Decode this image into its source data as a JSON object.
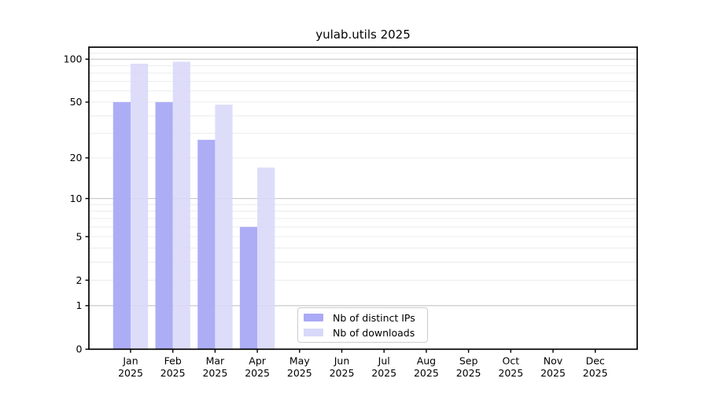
{
  "chart_data": {
    "type": "bar",
    "title": "yulab.utils 2025",
    "x_tick_months": [
      "Jan",
      "Feb",
      "Mar",
      "Apr",
      "May",
      "Jun",
      "Jul",
      "Aug",
      "Sep",
      "Oct",
      "Nov",
      "Dec"
    ],
    "x_tick_year": "2025",
    "categories": [
      "Jan 2025",
      "Feb 2025",
      "Mar 2025",
      "Apr 2025",
      "May 2025",
      "Jun 2025",
      "Jul 2025",
      "Aug 2025",
      "Sep 2025",
      "Oct 2025",
      "Nov 2025",
      "Dec 2025"
    ],
    "series": [
      {
        "name": "Nb of distinct IPs",
        "color": "#aaaaf6",
        "values": [
          50,
          50,
          27,
          6,
          null,
          null,
          null,
          null,
          null,
          null,
          null,
          null
        ]
      },
      {
        "name": "Nb of downloads",
        "color": "#d8d8f9",
        "values": [
          93,
          96,
          48,
          17,
          null,
          null,
          null,
          null,
          null,
          null,
          null,
          null
        ]
      }
    ],
    "y_scale": "log1p",
    "y_ticks": [
      0,
      1,
      2,
      5,
      10,
      20,
      50,
      100
    ],
    "y_major_gridlines": [
      1,
      10,
      100
    ],
    "y_minor_gridlines": [
      2,
      3,
      4,
      5,
      6,
      7,
      8,
      9,
      20,
      30,
      40,
      50,
      60,
      70,
      80,
      90,
      110
    ],
    "ylim": [
      0,
      121
    ],
    "grid": "horizontal",
    "legend_position": "lower-center-inside",
    "colors": {
      "distinct_ips_bar": "#aaaaf6",
      "downloads_bar": "#d8d8f9",
      "major_grid": "#c9c9c9",
      "minor_grid": "#ececec",
      "axis_spine": "#000000",
      "text": "#000000",
      "background": "#ffffff",
      "legend_border": "#cccccc"
    }
  }
}
